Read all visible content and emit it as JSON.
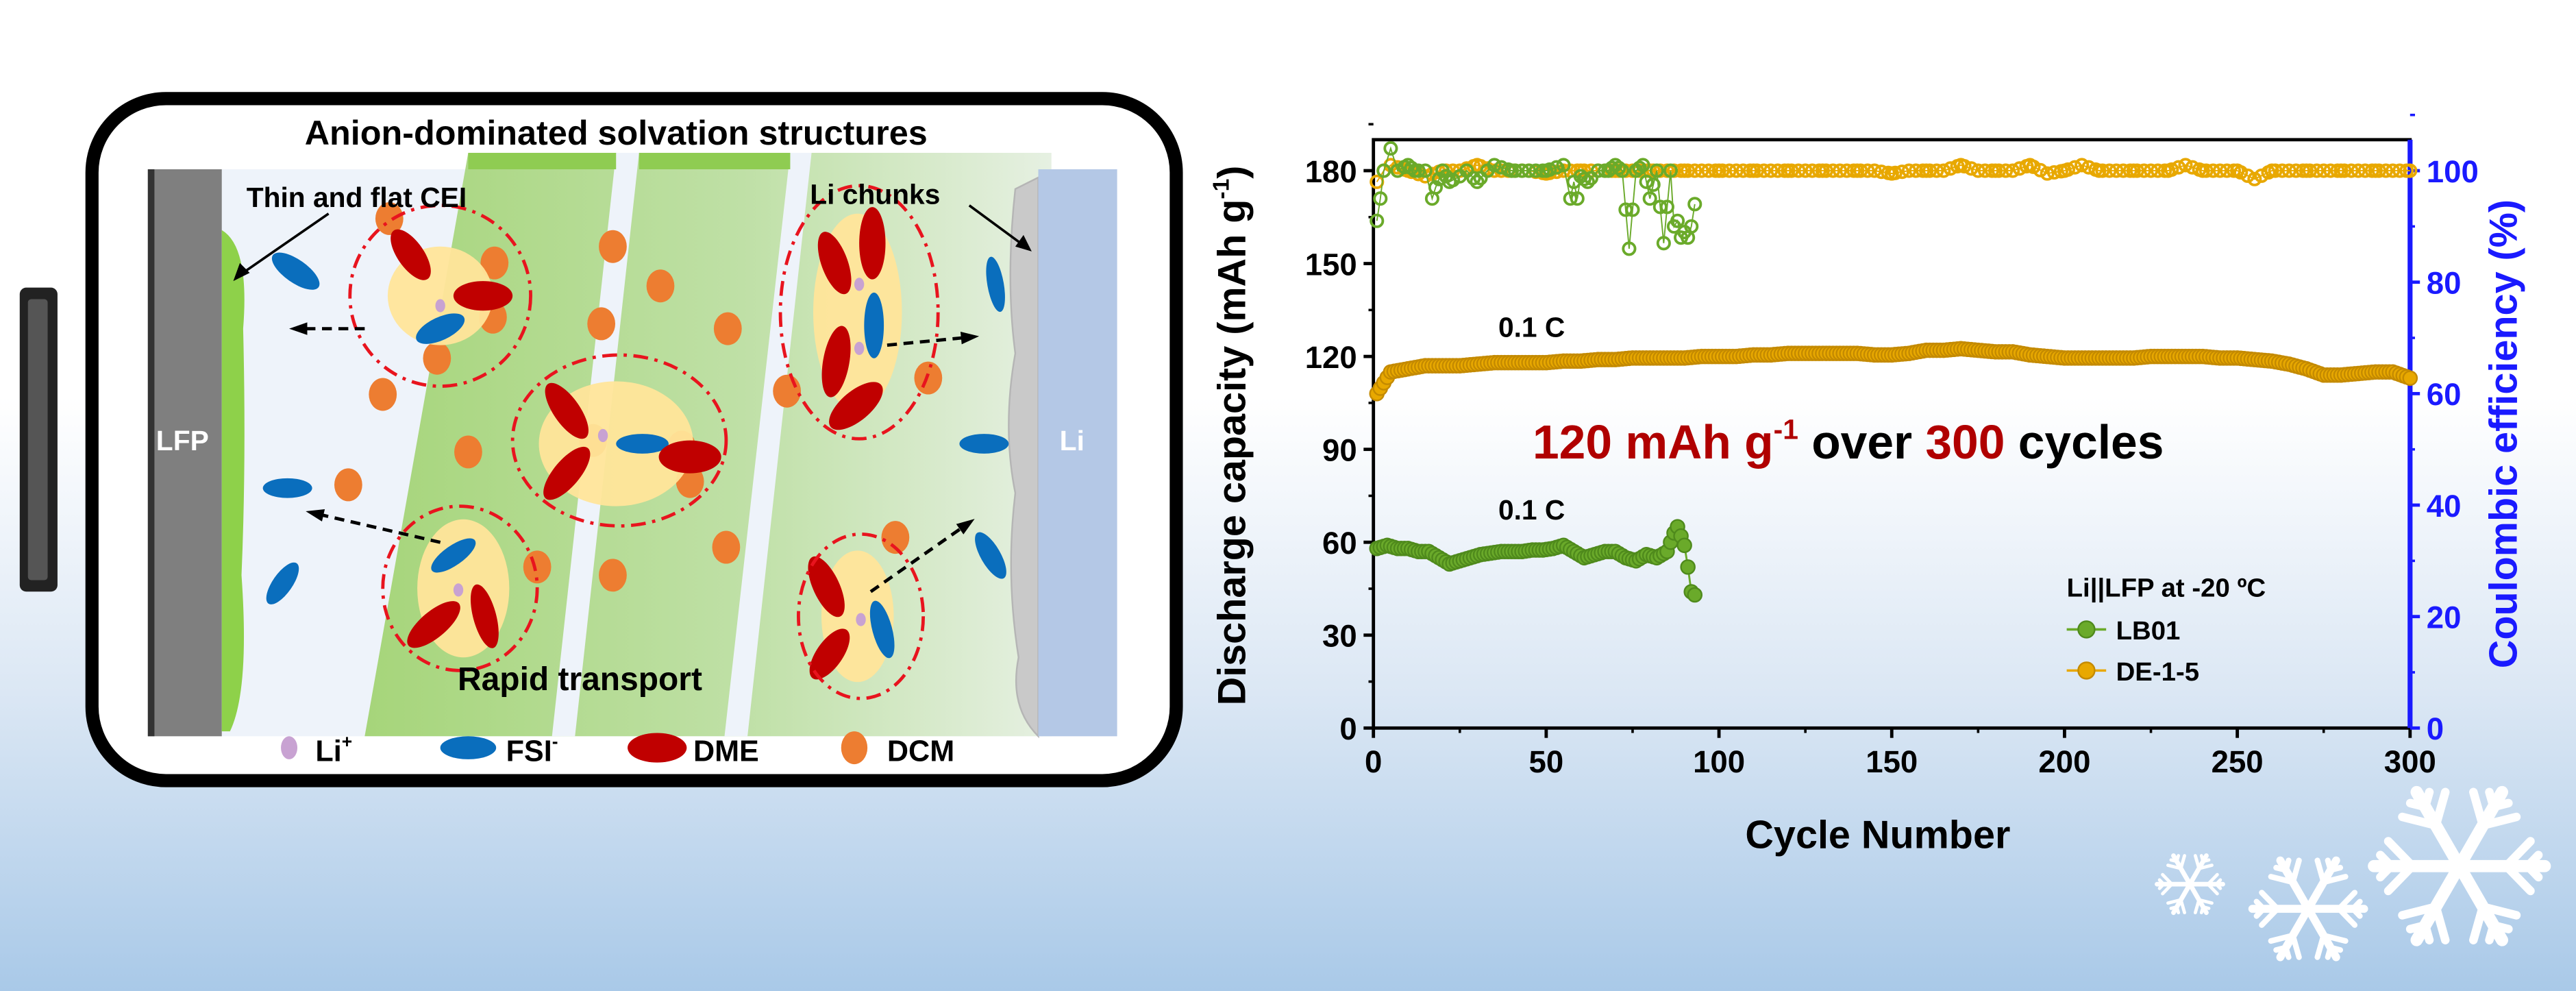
{
  "diagram": {
    "title": "Anion-dominated solvation structures",
    "cei_label": "Thin and flat CEI",
    "li_chunks_label": "Li chunks",
    "transport_label": "Rapid transport",
    "cathode_label": "LFP",
    "anode_label": "Li",
    "legend": [
      {
        "name": "Li",
        "sup": "+",
        "color": "#c8a2d2"
      },
      {
        "name": "FSI",
        "sup": "-",
        "color": "#0a6ebd"
      },
      {
        "name": "DME",
        "sup": "",
        "color": "#c00000"
      },
      {
        "name": "DCM",
        "sup": "",
        "color": "#ed7d31"
      }
    ]
  },
  "chart_data": {
    "type": "scatter",
    "xlabel": "Cycle Number",
    "ylabel_main": "Discharge capacity (mAh g",
    "ylabel_sup": "-1",
    "ylabel_end": ")",
    "y2label": "Coulombic efficiency (%)",
    "xlim": [
      0,
      300
    ],
    "ylim": [
      0,
      190
    ],
    "y2lim": [
      0,
      105.56
    ],
    "xticks": [
      "0",
      "50",
      "100",
      "150",
      "200",
      "250",
      "300"
    ],
    "yticks": [
      "0",
      "30",
      "60",
      "90",
      "120",
      "150",
      "180"
    ],
    "y2ticks": [
      "0",
      "20",
      "40",
      "60",
      "80",
      "100"
    ],
    "legend_title": "Li||LFP at -20 ºC",
    "legend_placement": "bottom-right",
    "rate_labels": [
      "0.1 C",
      "0.1 C"
    ],
    "headline": {
      "part1": "120 mAh g",
      "sup": "-1",
      "part2": " over ",
      "part3": "300",
      "part4": " cycles"
    },
    "colors": {
      "LB01": "#6aaa2a",
      "DE-1-5": "#e8a800",
      "highlight": "#b00000",
      "y2axis": "#1a1aff"
    },
    "series": [
      {
        "name": "LB01",
        "kind": "capacity",
        "axis": "left",
        "x": [
          1,
          4,
          7,
          10,
          13,
          16,
          19,
          22,
          25,
          28,
          31,
          34,
          37,
          40,
          43,
          46,
          49,
          52,
          55,
          58,
          61,
          64,
          67,
          70,
          73,
          76,
          79,
          82,
          85,
          87,
          88,
          89,
          90,
          91,
          92,
          93
        ],
        "y": [
          58,
          59,
          58,
          58,
          57,
          57,
          55,
          53,
          54,
          55,
          56,
          56.5,
          57,
          57,
          57,
          57.5,
          57.5,
          58,
          59,
          57,
          55,
          56,
          57,
          57,
          55,
          54,
          56,
          55,
          57,
          63,
          65,
          62,
          59,
          52,
          44,
          43
        ]
      },
      {
        "name": "DE-1-5",
        "kind": "capacity",
        "axis": "left",
        "x": [
          1,
          5,
          10,
          15,
          20,
          25,
          30,
          35,
          40,
          45,
          50,
          55,
          60,
          65,
          70,
          75,
          80,
          85,
          90,
          95,
          100,
          105,
          110,
          115,
          120,
          125,
          130,
          135,
          140,
          145,
          150,
          155,
          160,
          165,
          170,
          175,
          180,
          185,
          190,
          195,
          200,
          205,
          210,
          215,
          220,
          225,
          230,
          235,
          240,
          245,
          250,
          255,
          260,
          265,
          270,
          275,
          280,
          285,
          290,
          295,
          300
        ],
        "y": [
          108,
          115,
          116,
          117,
          117,
          117,
          117.5,
          118,
          118,
          118,
          118,
          118.5,
          118.5,
          119,
          119,
          119.5,
          119.5,
          119.5,
          119.5,
          120,
          120,
          120,
          120.5,
          120.5,
          121,
          121,
          121,
          121,
          121,
          120.5,
          120.5,
          121,
          122,
          122,
          122.5,
          122,
          121.5,
          121.5,
          120.5,
          120,
          119.5,
          119.5,
          119.5,
          119.5,
          119.5,
          120,
          120,
          120,
          120,
          119.5,
          119.5,
          119,
          118.5,
          117.5,
          116,
          114,
          114,
          114.5,
          115,
          115,
          113
        ]
      },
      {
        "name": "LB01",
        "kind": "coulombic_efficiency",
        "axis": "right",
        "x": [
          1,
          2,
          3,
          5,
          7,
          10,
          12,
          15,
          17,
          18,
          20,
          22,
          25,
          27,
          30,
          33,
          35,
          40,
          45,
          50,
          55,
          57,
          58,
          59,
          60,
          62,
          65,
          68,
          70,
          72,
          74,
          76,
          78,
          80,
          82,
          84,
          86,
          87,
          88,
          89,
          90,
          91,
          92,
          93
        ],
        "y": [
          91,
          95,
          100,
          104,
          100,
          101,
          100,
          100,
          95,
          97,
          100,
          98,
          99,
          100,
          98,
          100,
          101,
          100,
          100,
          100,
          101,
          95,
          98,
          95,
          99,
          98,
          100,
          100,
          101,
          100,
          86,
          100,
          101,
          95,
          100,
          87,
          100,
          90,
          91,
          88,
          89,
          88,
          90,
          94
        ]
      },
      {
        "name": "DE-1-5",
        "kind": "coulombic_efficiency",
        "axis": "right",
        "x": [
          1,
          3,
          5,
          10,
          15,
          20,
          25,
          30,
          35,
          40,
          45,
          50,
          55,
          60,
          65,
          70,
          75,
          80,
          85,
          90,
          95,
          100,
          105,
          110,
          115,
          120,
          125,
          130,
          135,
          140,
          145,
          150,
          155,
          160,
          165,
          170,
          175,
          180,
          185,
          190,
          195,
          200,
          205,
          210,
          215,
          220,
          225,
          230,
          235,
          240,
          245,
          250,
          255,
          260,
          265,
          270,
          275,
          280,
          285,
          290,
          295,
          300
        ],
        "y": [
          98,
          100,
          101,
          100,
          99,
          100,
          100,
          101,
          100,
          100,
          100,
          99.5,
          100,
          100,
          100,
          100,
          100,
          100,
          100,
          100,
          100,
          100,
          100,
          100,
          100,
          100,
          100,
          100,
          100,
          100,
          100,
          99.5,
          100,
          100,
          100,
          101,
          100,
          100,
          100,
          101,
          99.5,
          100,
          101,
          100,
          100,
          100,
          100,
          100,
          101,
          100,
          100,
          100,
          98.5,
          100,
          100,
          100,
          100,
          100,
          100,
          100,
          100,
          100
        ]
      }
    ]
  }
}
